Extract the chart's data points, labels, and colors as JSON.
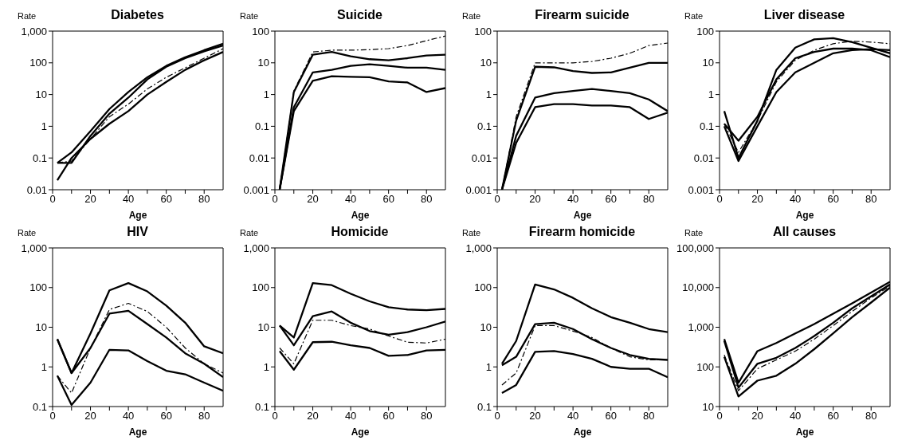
{
  "chart_data": [
    {
      "type": "line",
      "title": "Diabetes",
      "xlabel": "Age",
      "ylabel": "Rate",
      "log": true,
      "x": [
        2.5,
        10,
        20,
        30,
        40,
        50,
        60,
        70,
        80,
        90
      ],
      "xlim": [
        0,
        90
      ],
      "xticks": [
        0,
        {
          "value": 10,
          "label": null
        },
        20,
        {
          "value": 30,
          "label": null
        },
        40,
        {
          "value": 50,
          "label": null
        },
        60,
        {
          "value": 70,
          "label": null
        },
        80
      ],
      "ylim": [
        0.01,
        1000
      ],
      "yticks": [
        0.01,
        0.1,
        1,
        10,
        100,
        {
          "value": 1000,
          "label": "1,000"
        }
      ],
      "series": [
        {
          "color": "#000000",
          "line_style": "solid",
          "values": [
            0.07,
            0.15,
            0.7,
            3.5,
            12,
            35,
            80,
            150,
            250,
            400
          ]
        },
        {
          "color": "#000000",
          "line_style": "solid",
          "values": [
            0.07,
            0.07,
            0.5,
            2.5,
            8,
            30,
            75,
            140,
            230,
            350
          ]
        },
        {
          "color": "#000000",
          "line_style": "solid",
          "values": [
            0.02,
            0.1,
            0.4,
            1.2,
            3,
            10,
            25,
            60,
            120,
            220
          ]
        },
        {
          "color": "#000000",
          "line_style": "dashed",
          "values": [
            0.07,
            0.08,
            0.4,
            2,
            5,
            15,
            35,
            70,
            140,
            280
          ]
        }
      ]
    },
    {
      "type": "line",
      "title": "Suicide",
      "xlabel": "Age",
      "ylabel": "Rate",
      "log": true,
      "x": [
        2.5,
        10,
        20,
        30,
        40,
        50,
        60,
        70,
        80,
        90
      ],
      "xlim": [
        0,
        90
      ],
      "xticks": [
        0,
        {
          "value": 10,
          "label": null
        },
        20,
        {
          "value": 30,
          "label": null
        },
        40,
        {
          "value": 50,
          "label": null
        },
        60,
        {
          "value": 70,
          "label": null
        },
        80
      ],
      "ylim": [
        0.001,
        100
      ],
      "yticks": [
        0.001,
        0.01,
        0.1,
        1,
        10,
        100
      ],
      "series": [
        {
          "color": "#000000",
          "line_style": "dashed",
          "values": [
            0.001,
            1.3,
            22,
            25,
            25,
            26,
            28,
            35,
            50,
            70
          ]
        },
        {
          "color": "#000000",
          "line_style": "solid",
          "values": [
            0.001,
            1.2,
            18,
            22,
            16,
            13,
            12,
            14,
            17,
            18
          ]
        },
        {
          "color": "#000000",
          "line_style": "solid",
          "values": [
            0.001,
            0.4,
            5,
            6,
            8,
            9,
            8,
            7,
            7,
            6
          ]
        },
        {
          "color": "#000000",
          "line_style": "solid",
          "values": [
            0.001,
            0.3,
            2.7,
            3.8,
            3.6,
            3.5,
            2.6,
            2.4,
            1.2,
            1.6
          ]
        }
      ]
    },
    {
      "type": "line",
      "title": "Firearm suicide",
      "xlabel": "Age",
      "ylabel": "Rate",
      "log": true,
      "x": [
        2.5,
        10,
        20,
        30,
        40,
        50,
        60,
        70,
        80,
        90
      ],
      "xlim": [
        0,
        90
      ],
      "xticks": [
        0,
        {
          "value": 10,
          "label": null
        },
        20,
        {
          "value": 30,
          "label": null
        },
        40,
        {
          "value": 50,
          "label": null
        },
        60,
        {
          "value": 70,
          "label": null
        },
        80
      ],
      "ylim": [
        0.001,
        100
      ],
      "yticks": [
        0.001,
        0.01,
        0.1,
        1,
        10,
        100
      ],
      "series": [
        {
          "color": "#000000",
          "line_style": "dashed",
          "values": [
            0.001,
            0.2,
            10,
            10,
            10,
            11,
            14,
            20,
            35,
            42
          ]
        },
        {
          "color": "#000000",
          "line_style": "solid",
          "values": [
            0.001,
            0.15,
            7.5,
            7.2,
            5.5,
            4.8,
            5,
            7,
            10,
            10
          ]
        },
        {
          "color": "#000000",
          "line_style": "solid",
          "values": [
            0.001,
            0.05,
            0.8,
            1.1,
            1.3,
            1.5,
            1.3,
            1.1,
            0.7,
            0.3
          ]
        },
        {
          "color": "#000000",
          "line_style": "solid",
          "values": [
            0.001,
            0.03,
            0.4,
            0.5,
            0.5,
            0.45,
            0.45,
            0.4,
            0.17,
            0.27
          ]
        }
      ]
    },
    {
      "type": "line",
      "title": "Liver disease",
      "xlabel": "Age",
      "ylabel": "Rate",
      "log": true,
      "x": [
        2.5,
        10,
        20,
        30,
        40,
        50,
        60,
        70,
        80,
        90
      ],
      "xlim": [
        0,
        90
      ],
      "xticks": [
        0,
        {
          "value": 10,
          "label": null
        },
        20,
        {
          "value": 30,
          "label": null
        },
        40,
        {
          "value": 50,
          "label": null
        },
        60,
        {
          "value": 70,
          "label": null
        },
        80
      ],
      "ylim": [
        0.001,
        100
      ],
      "yticks": [
        0.001,
        0.01,
        0.1,
        1,
        10,
        100
      ],
      "series": [
        {
          "color": "#000000",
          "line_style": "solid",
          "values": [
            0.3,
            0.01,
            0.15,
            6,
            30,
            55,
            60,
            45,
            30,
            20
          ]
        },
        {
          "color": "#000000",
          "line_style": "solid",
          "values": [
            0.12,
            0.035,
            0.2,
            3,
            14,
            22,
            28,
            28,
            25,
            15
          ]
        },
        {
          "color": "#000000",
          "line_style": "solid",
          "values": [
            0.1,
            0.008,
            0.1,
            1.2,
            5,
            10,
            20,
            25,
            27,
            25
          ]
        },
        {
          "color": "#000000",
          "line_style": "dashed",
          "values": [
            0.12,
            0.015,
            0.15,
            2.5,
            12,
            25,
            40,
            48,
            45,
            40
          ]
        }
      ]
    },
    {
      "type": "line",
      "title": "HIV",
      "xlabel": "Age",
      "ylabel": "Rate",
      "log": true,
      "x": [
        2.5,
        10,
        20,
        30,
        40,
        50,
        60,
        70,
        80,
        90
      ],
      "xlim": [
        0,
        90
      ],
      "xticks": [
        0,
        {
          "value": 10,
          "label": null
        },
        20,
        {
          "value": 30,
          "label": null
        },
        40,
        {
          "value": 50,
          "label": null
        },
        60,
        {
          "value": 70,
          "label": null
        },
        80
      ],
      "ylim": [
        0.1,
        1000
      ],
      "yticks": [
        0.1,
        1,
        10,
        100,
        {
          "value": 1000,
          "label": "1,000"
        }
      ],
      "series": [
        {
          "color": "#000000",
          "line_style": "solid",
          "values": [
            5,
            0.7,
            7,
            85,
            130,
            80,
            35,
            13,
            3.3,
            2.2
          ]
        },
        {
          "color": "#000000",
          "line_style": "dashed",
          "values": [
            0.6,
            0.22,
            3,
            28,
            40,
            25,
            10,
            3,
            1.2,
            0.7
          ]
        },
        {
          "color": "#000000",
          "line_style": "solid",
          "values": [
            5,
            0.7,
            3,
            22,
            26,
            12,
            5.5,
            2.2,
            1.2,
            0.55
          ]
        },
        {
          "color": "#000000",
          "line_style": "solid",
          "values": [
            0.6,
            0.11,
            0.4,
            2.7,
            2.6,
            1.4,
            0.8,
            0.65,
            0.4,
            0.25
          ]
        }
      ]
    },
    {
      "type": "line",
      "title": "Homicide",
      "xlabel": "Age",
      "ylabel": "Rate",
      "log": true,
      "x": [
        2.5,
        10,
        20,
        30,
        40,
        50,
        60,
        70,
        80,
        90
      ],
      "xlim": [
        0,
        90
      ],
      "xticks": [
        0,
        {
          "value": 10,
          "label": null
        },
        20,
        {
          "value": 30,
          "label": null
        },
        40,
        {
          "value": 50,
          "label": null
        },
        60,
        {
          "value": 70,
          "label": null
        },
        80
      ],
      "ylim": [
        0.1,
        1000
      ],
      "yticks": [
        0.1,
        1,
        10,
        100,
        {
          "value": 1000,
          "label": "1,000"
        }
      ],
      "series": [
        {
          "color": "#000000",
          "line_style": "solid",
          "values": [
            11,
            5.5,
            130,
            115,
            70,
            45,
            32,
            28,
            27,
            29
          ]
        },
        {
          "color": "#000000",
          "line_style": "solid",
          "values": [
            11,
            3.5,
            19,
            25,
            13,
            8,
            6.5,
            7.5,
            10,
            14
          ]
        },
        {
          "color": "#000000",
          "line_style": "dashed",
          "values": [
            3,
            1.2,
            15,
            15,
            11,
            9,
            6,
            4.2,
            4,
            5
          ]
        },
        {
          "color": "#000000",
          "line_style": "solid",
          "values": [
            2.5,
            0.85,
            4.2,
            4.3,
            3.5,
            3,
            1.9,
            2,
            2.6,
            2.7
          ]
        }
      ]
    },
    {
      "type": "line",
      "title": "Firearm homicide",
      "xlabel": "Age",
      "ylabel": "Rate",
      "log": true,
      "x": [
        2.5,
        10,
        20,
        30,
        40,
        50,
        60,
        70,
        80,
        90
      ],
      "xlim": [
        0,
        90
      ],
      "xticks": [
        0,
        {
          "value": 10,
          "label": null
        },
        20,
        {
          "value": 30,
          "label": null
        },
        40,
        {
          "value": 50,
          "label": null
        },
        60,
        {
          "value": 70,
          "label": null
        },
        80
      ],
      "ylim": [
        0.1,
        1000
      ],
      "yticks": [
        0.1,
        1,
        10,
        100,
        {
          "value": 1000,
          "label": "1,000"
        }
      ],
      "series": [
        {
          "color": "#000000",
          "line_style": "solid",
          "values": [
            1.2,
            4.5,
            120,
            90,
            55,
            30,
            18,
            13,
            9,
            7.5
          ]
        },
        {
          "color": "#000000",
          "line_style": "solid",
          "values": [
            1.1,
            1.8,
            12,
            13,
            9,
            5,
            3,
            2,
            1.6,
            1.5
          ]
        },
        {
          "color": "#000000",
          "line_style": "dashed",
          "values": [
            0.35,
            0.7,
            11,
            11,
            8,
            5.5,
            3,
            1.8,
            1.5,
            1.5
          ]
        },
        {
          "color": "#000000",
          "line_style": "solid",
          "values": [
            0.22,
            0.35,
            2.4,
            2.5,
            2.1,
            1.6,
            1,
            0.9,
            0.9,
            0.55
          ]
        }
      ]
    },
    {
      "type": "line",
      "title": "All causes",
      "xlabel": "Age",
      "ylabel": "Rate",
      "log": true,
      "x": [
        2.5,
        10,
        20,
        30,
        40,
        50,
        60,
        70,
        80,
        90
      ],
      "xlim": [
        0,
        90
      ],
      "xticks": [
        0,
        {
          "value": 10,
          "label": null
        },
        20,
        {
          "value": 30,
          "label": null
        },
        40,
        {
          "value": 50,
          "label": null
        },
        60,
        {
          "value": 70,
          "label": null
        },
        80
      ],
      "ylim": [
        10,
        100000
      ],
      "yticks": [
        10,
        100,
        {
          "value": 1000,
          "label": "1,000"
        },
        {
          "value": 10000,
          "label": "10,000"
        },
        {
          "value": 100000,
          "label": "100,000"
        }
      ],
      "series": [
        {
          "color": "#000000",
          "line_style": "solid",
          "values": [
            500,
            40,
            250,
            400,
            700,
            1200,
            2200,
            4000,
            7500,
            14000
          ]
        },
        {
          "color": "#000000",
          "line_style": "solid",
          "values": [
            450,
            30,
            120,
            170,
            300,
            600,
            1300,
            3000,
            6000,
            12000
          ]
        },
        {
          "color": "#000000",
          "line_style": "dashed",
          "values": [
            200,
            25,
            90,
            150,
            250,
            500,
            1100,
            2500,
            5500,
            11000
          ]
        },
        {
          "color": "#000000",
          "line_style": "solid",
          "values": [
            180,
            18,
            45,
            60,
            120,
            280,
            700,
            1800,
            4200,
            10000
          ]
        }
      ]
    }
  ]
}
